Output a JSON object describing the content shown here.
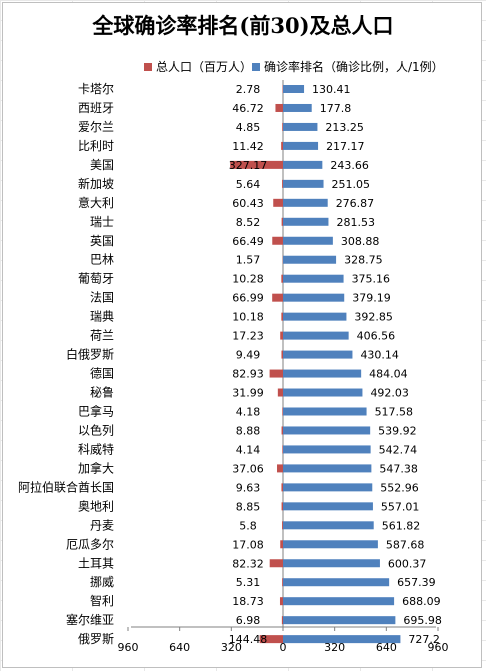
{
  "colors": {
    "population": "#c0504d",
    "rate": "#4f81bd"
  },
  "chart_data": {
    "type": "bar",
    "orientation": "horizontal",
    "title": "全球确诊率排名(前30)及总人口",
    "legend_placement": "top",
    "categories": [
      "卡塔尔",
      "西班牙",
      "爱尔兰",
      "比利时",
      "美国",
      "新加坡",
      "意大利",
      "瑞士",
      "英国",
      "巴林",
      "葡萄牙",
      "法国",
      "瑞典",
      "荷兰",
      "白俄罗斯",
      "德国",
      "秘鲁",
      "巴拿马",
      "以色列",
      "科威特",
      "加拿大",
      "阿拉伯联合酋长国",
      "奥地利",
      "丹麦",
      "厄瓜多尔",
      "土耳其",
      "挪威",
      "智利",
      "塞尔维亚",
      "俄罗斯"
    ],
    "series": [
      {
        "name": "总人口（百万人）",
        "direction": "negative",
        "labels": [
          "2.78",
          "46.72",
          "4.85",
          "11.42",
          "327.17",
          "5.64",
          "60.43",
          "8.52",
          "66.49",
          "1.57",
          "10.28",
          "66.99",
          "10.18",
          "17.23",
          "9.49",
          "82.93",
          "31.99",
          "4.18",
          "8.88",
          "4.14",
          "37.06",
          "9.63",
          "8.85",
          "5.8",
          "17.08",
          "82.32",
          "5.31",
          "18.73",
          "6.98",
          "144.48"
        ],
        "values": [
          2.78,
          46.72,
          4.85,
          11.42,
          327.17,
          5.64,
          60.43,
          8.52,
          66.49,
          1.57,
          10.28,
          66.99,
          10.18,
          17.23,
          9.49,
          82.93,
          31.99,
          4.18,
          8.88,
          4.14,
          37.06,
          9.63,
          8.85,
          5.8,
          17.08,
          82.32,
          5.31,
          18.73,
          6.98,
          144.48
        ]
      },
      {
        "name": "确诊率排名（确诊比例，人/1例）",
        "direction": "positive",
        "labels": [
          "130.41",
          "177.8",
          "213.25",
          "217.17",
          "243.66",
          "251.05",
          "276.87",
          "281.53",
          "308.88",
          "328.75",
          "375.16",
          "379.19",
          "392.85",
          "406.56",
          "430.14",
          "484.04",
          "492.03",
          "517.58",
          "539.92",
          "542.74",
          "547.38",
          "552.96",
          "557.01",
          "561.82",
          "587.68",
          "600.37",
          "657.39",
          "688.09",
          "695.98",
          "727.2"
        ],
        "values": [
          130.41,
          177.8,
          213.25,
          217.17,
          243.66,
          251.05,
          276.87,
          281.53,
          308.88,
          328.75,
          375.16,
          379.19,
          392.85,
          406.56,
          430.14,
          484.04,
          492.03,
          517.58,
          539.92,
          542.74,
          547.38,
          552.96,
          557.01,
          561.82,
          587.68,
          600.37,
          657.39,
          688.09,
          695.98,
          727.2
        ]
      }
    ],
    "xlim": [
      -960,
      960
    ],
    "x_tick_labels": [
      "960",
      "640",
      "320",
      "0",
      "320",
      "640",
      "960"
    ],
    "x_tick_values": [
      -960,
      -640,
      -320,
      0,
      320,
      640,
      960
    ],
    "grid": false
  }
}
